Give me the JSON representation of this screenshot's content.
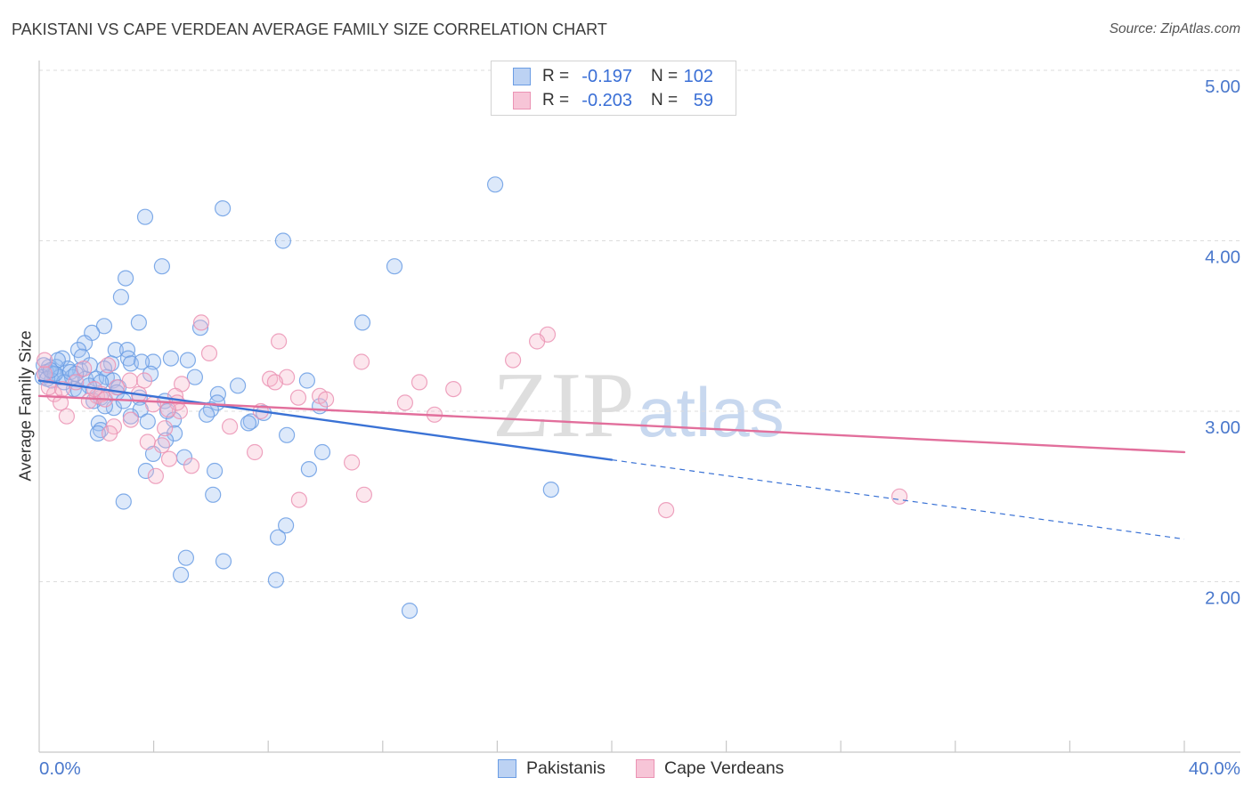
{
  "watermark": {
    "part1": "ZIP",
    "part2": "atlas"
  },
  "chart_data": {
    "type": "scatter",
    "title": "PAKISTANI VS CAPE VERDEAN AVERAGE FAMILY SIZE CORRELATION CHART",
    "source": "Source: ZipAtlas.com",
    "ylabel": "Average Family Size",
    "xlim": [
      0,
      40
    ],
    "ylim": [
      1.0,
      5.0
    ],
    "grid": true,
    "x_ticks": [
      0,
      4,
      8,
      12,
      16,
      20,
      24,
      28,
      32,
      36,
      40
    ],
    "x_tick_labels": [
      {
        "value": 0,
        "label": "0.0%"
      },
      {
        "value": 40,
        "label": "40.0%"
      }
    ],
    "y_ticks": [
      {
        "value": 5,
        "label": "5.00"
      },
      {
        "value": 4,
        "label": "4.00"
      },
      {
        "value": 3,
        "label": "3.00"
      },
      {
        "value": 2,
        "label": "2.00"
      }
    ],
    "series": [
      {
        "name": "Pakistanis",
        "color": "#6b9de4",
        "fill": "#9fbff0",
        "line_color": "#3a72d5",
        "legend": {
          "r_label": "R =",
          "r": "-0.197",
          "n_label": "N =",
          "n": "102"
        },
        "trendline": {
          "x": [
            0,
            40
          ],
          "y": [
            3.18,
            2.25
          ],
          "solid_to_x": 20
        },
        "points": [
          [
            15.93,
            4.33
          ],
          [
            3.7,
            4.14
          ],
          [
            6.41,
            4.19
          ],
          [
            8.52,
            4.0
          ],
          [
            4.29,
            3.85
          ],
          [
            12.41,
            3.85
          ],
          [
            3.02,
            3.78
          ],
          [
            2.86,
            3.67
          ],
          [
            3.48,
            3.52
          ],
          [
            11.29,
            3.52
          ],
          [
            2.27,
            3.5
          ],
          [
            5.63,
            3.49
          ],
          [
            1.84,
            3.46
          ],
          [
            1.59,
            3.4
          ],
          [
            1.37,
            3.36
          ],
          [
            2.67,
            3.36
          ],
          [
            3.08,
            3.36
          ],
          [
            1.49,
            3.32
          ],
          [
            0.81,
            3.31
          ],
          [
            3.11,
            3.31
          ],
          [
            4.6,
            3.31
          ],
          [
            5.19,
            3.3
          ],
          [
            3.2,
            3.28
          ],
          [
            3.98,
            3.29
          ],
          [
            2.52,
            3.28
          ],
          [
            2.27,
            3.25
          ],
          [
            3.58,
            3.29
          ],
          [
            1.43,
            3.24
          ],
          [
            1.0,
            3.25
          ],
          [
            0.59,
            3.26
          ],
          [
            0.34,
            3.26
          ],
          [
            0.25,
            3.23
          ],
          [
            0.5,
            3.22
          ],
          [
            0.72,
            3.2
          ],
          [
            1.15,
            3.2
          ],
          [
            1.62,
            3.19
          ],
          [
            1.99,
            3.19
          ],
          [
            2.36,
            3.2
          ],
          [
            3.89,
            3.22
          ],
          [
            5.44,
            3.2
          ],
          [
            9.36,
            3.18
          ],
          [
            6.94,
            3.15
          ],
          [
            2.58,
            3.18
          ],
          [
            2.15,
            3.17
          ],
          [
            1.74,
            3.15
          ],
          [
            1.21,
            3.13
          ],
          [
            2.77,
            3.14
          ],
          [
            2.71,
            3.11
          ],
          [
            1.37,
            3.12
          ],
          [
            6.25,
            3.1
          ],
          [
            2.15,
            3.08
          ],
          [
            3.51,
            3.08
          ],
          [
            6.22,
            3.05
          ],
          [
            4.39,
            3.06
          ],
          [
            9.8,
            3.03
          ],
          [
            2.61,
            3.02
          ],
          [
            2.3,
            3.03
          ],
          [
            3.54,
            3.01
          ],
          [
            4.48,
            3.0
          ],
          [
            6.0,
            3.01
          ],
          [
            7.84,
            2.99
          ],
          [
            5.85,
            2.98
          ],
          [
            3.2,
            2.97
          ],
          [
            7.4,
            2.94
          ],
          [
            7.31,
            2.93
          ],
          [
            2.08,
            2.93
          ],
          [
            4.7,
            2.95
          ],
          [
            3.79,
            2.94
          ],
          [
            2.15,
            2.89
          ],
          [
            2.05,
            2.87
          ],
          [
            4.73,
            2.87
          ],
          [
            4.42,
            2.83
          ],
          [
            8.65,
            2.86
          ],
          [
            3.98,
            2.75
          ],
          [
            9.89,
            2.76
          ],
          [
            5.07,
            2.73
          ],
          [
            9.42,
            2.66
          ],
          [
            3.73,
            2.65
          ],
          [
            6.13,
            2.65
          ],
          [
            17.88,
            2.54
          ],
          [
            6.07,
            2.51
          ],
          [
            2.95,
            2.47
          ],
          [
            8.62,
            2.33
          ],
          [
            8.34,
            2.26
          ],
          [
            5.13,
            2.14
          ],
          [
            6.44,
            2.12
          ],
          [
            4.95,
            2.04
          ],
          [
            8.27,
            2.01
          ],
          [
            12.94,
            1.83
          ],
          [
            0.16,
            3.27
          ],
          [
            0.12,
            3.2
          ],
          [
            0.44,
            3.18
          ],
          [
            0.87,
            3.17
          ],
          [
            0.65,
            3.3
          ],
          [
            1.9,
            3.06
          ],
          [
            1.09,
            3.23
          ],
          [
            0.28,
            3.19
          ],
          [
            0.56,
            3.22
          ],
          [
            1.28,
            3.22
          ],
          [
            1.77,
            3.27
          ],
          [
            2.95,
            3.06
          ],
          [
            0.4,
            3.24
          ]
        ]
      },
      {
        "name": "Cape Verdeans",
        "color": "#eb93b4",
        "fill": "#f7b6cc",
        "line_color": "#e26f9c",
        "legend": {
          "r_label": "R =",
          "r": "-0.203",
          "n_label": "N =",
          "n": "59"
        },
        "trendline": {
          "x": [
            0,
            40
          ],
          "y": [
            3.09,
            2.76
          ],
          "solid_to_x": 40
        },
        "points": [
          [
            5.66,
            3.52
          ],
          [
            8.37,
            3.41
          ],
          [
            17.76,
            3.45
          ],
          [
            17.39,
            3.41
          ],
          [
            5.94,
            3.34
          ],
          [
            11.26,
            3.29
          ],
          [
            16.55,
            3.3
          ],
          [
            2.4,
            3.27
          ],
          [
            1.56,
            3.25
          ],
          [
            8.65,
            3.2
          ],
          [
            8.06,
            3.19
          ],
          [
            8.24,
            3.17
          ],
          [
            13.28,
            3.17
          ],
          [
            4.98,
            3.16
          ],
          [
            3.17,
            3.18
          ],
          [
            14.47,
            3.13
          ],
          [
            9.8,
            3.09
          ],
          [
            10.02,
            3.07
          ],
          [
            9.05,
            3.08
          ],
          [
            12.78,
            3.05
          ],
          [
            3.48,
            3.1
          ],
          [
            4.76,
            3.09
          ],
          [
            2.02,
            3.09
          ],
          [
            0.53,
            3.1
          ],
          [
            0.75,
            3.05
          ],
          [
            1.74,
            3.06
          ],
          [
            2.18,
            3.1
          ],
          [
            3.98,
            3.04
          ],
          [
            4.91,
            3.0
          ],
          [
            13.81,
            2.98
          ],
          [
            7.74,
            3.0
          ],
          [
            0.96,
            2.97
          ],
          [
            3.2,
            2.95
          ],
          [
            6.66,
            2.91
          ],
          [
            2.61,
            2.91
          ],
          [
            4.39,
            2.9
          ],
          [
            2.46,
            2.87
          ],
          [
            3.79,
            2.82
          ],
          [
            4.29,
            2.8
          ],
          [
            7.53,
            2.76
          ],
          [
            4.54,
            2.72
          ],
          [
            5.32,
            2.68
          ],
          [
            10.92,
            2.7
          ],
          [
            4.07,
            2.62
          ],
          [
            11.35,
            2.51
          ],
          [
            9.08,
            2.48
          ],
          [
            21.9,
            2.42
          ],
          [
            30.05,
            2.5
          ],
          [
            0.34,
            3.14
          ],
          [
            0.19,
            3.22
          ],
          [
            0.81,
            3.13
          ],
          [
            1.28,
            3.17
          ],
          [
            1.93,
            3.13
          ],
          [
            2.71,
            3.14
          ],
          [
            4.82,
            3.05
          ],
          [
            3.67,
            3.18
          ],
          [
            2.3,
            3.07
          ],
          [
            4.51,
            3.01
          ],
          [
            0.19,
            3.3
          ]
        ]
      }
    ]
  }
}
